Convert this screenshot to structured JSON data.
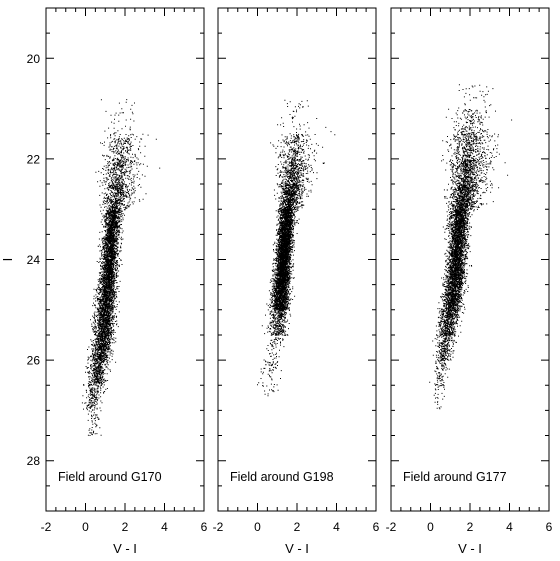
{
  "chart_data": [
    {
      "type": "scatter",
      "annotation": "Field around G170",
      "xlabel": "V - I",
      "ylabel": "I",
      "xlim": [
        -2,
        6
      ],
      "ylim": [
        29,
        19
      ],
      "y_inverted": true,
      "x_ticks": [
        -2,
        0,
        2,
        4,
        6
      ],
      "y_ticks": [
        20,
        22,
        24,
        26,
        28
      ],
      "grid": false,
      "distribution": [
        {
          "I": 20.8,
          "v_i_center": 1.9,
          "v_i_spread": 0.9,
          "relative_density": 0.05
        },
        {
          "I": 21.5,
          "v_i_center": 1.7,
          "v_i_spread": 0.8,
          "relative_density": 0.25
        },
        {
          "I": 22.0,
          "v_i_center": 1.6,
          "v_i_spread": 0.8,
          "relative_density": 0.45
        },
        {
          "I": 22.5,
          "v_i_center": 1.5,
          "v_i_spread": 0.7,
          "relative_density": 0.6
        },
        {
          "I": 23.0,
          "v_i_center": 1.4,
          "v_i_spread": 0.55,
          "relative_density": 0.85
        },
        {
          "I": 23.5,
          "v_i_center": 1.3,
          "v_i_spread": 0.45,
          "relative_density": 1.0
        },
        {
          "I": 24.0,
          "v_i_center": 1.2,
          "v_i_spread": 0.45,
          "relative_density": 1.0
        },
        {
          "I": 24.5,
          "v_i_center": 1.1,
          "v_i_spread": 0.45,
          "relative_density": 1.0
        },
        {
          "I": 25.0,
          "v_i_center": 1.0,
          "v_i_spread": 0.5,
          "relative_density": 0.95
        },
        {
          "I": 25.5,
          "v_i_center": 0.9,
          "v_i_spread": 0.55,
          "relative_density": 0.8
        },
        {
          "I": 26.0,
          "v_i_center": 0.7,
          "v_i_spread": 0.55,
          "relative_density": 0.5
        },
        {
          "I": 26.5,
          "v_i_center": 0.5,
          "v_i_spread": 0.5,
          "relative_density": 0.2
        },
        {
          "I": 27.0,
          "v_i_center": 0.3,
          "v_i_spread": 0.4,
          "relative_density": 0.06
        }
      ]
    },
    {
      "type": "scatter",
      "annotation": "Field around G198",
      "xlabel": "V - I",
      "ylabel": "",
      "xlim": [
        -2,
        6
      ],
      "ylim": [
        29,
        19
      ],
      "y_inverted": true,
      "x_ticks": [
        -2,
        0,
        2,
        4,
        6
      ],
      "y_ticks": [
        20,
        22,
        24,
        26,
        28
      ],
      "grid": false,
      "distribution": [
        {
          "I": 20.8,
          "v_i_center": 1.9,
          "v_i_spread": 0.8,
          "relative_density": 0.04
        },
        {
          "I": 21.5,
          "v_i_center": 1.8,
          "v_i_spread": 0.8,
          "relative_density": 0.2
        },
        {
          "I": 22.0,
          "v_i_center": 1.7,
          "v_i_spread": 0.75,
          "relative_density": 0.4
        },
        {
          "I": 22.5,
          "v_i_center": 1.6,
          "v_i_spread": 0.6,
          "relative_density": 0.6
        },
        {
          "I": 23.0,
          "v_i_center": 1.5,
          "v_i_spread": 0.45,
          "relative_density": 0.85
        },
        {
          "I": 23.5,
          "v_i_center": 1.4,
          "v_i_spread": 0.4,
          "relative_density": 1.0
        },
        {
          "I": 24.0,
          "v_i_center": 1.3,
          "v_i_spread": 0.4,
          "relative_density": 1.0
        },
        {
          "I": 24.5,
          "v_i_center": 1.2,
          "v_i_spread": 0.45,
          "relative_density": 0.9
        },
        {
          "I": 25.0,
          "v_i_center": 1.1,
          "v_i_spread": 0.5,
          "relative_density": 0.3
        },
        {
          "I": 25.5,
          "v_i_center": 1.0,
          "v_i_spread": 0.5,
          "relative_density": 0.08
        },
        {
          "I": 26.2,
          "v_i_center": 0.6,
          "v_i_spread": 0.5,
          "relative_density": 0.03
        }
      ]
    },
    {
      "type": "scatter",
      "annotation": "Field around G177",
      "xlabel": "V - I",
      "ylabel": "",
      "xlim": [
        -2,
        6
      ],
      "ylim": [
        29,
        19
      ],
      "y_inverted": true,
      "x_ticks": [
        -2,
        0,
        2,
        4,
        6
      ],
      "y_ticks": [
        20,
        22,
        24,
        26,
        28
      ],
      "grid": false,
      "distribution": [
        {
          "I": 20.5,
          "v_i_center": 2.0,
          "v_i_spread": 0.8,
          "relative_density": 0.04
        },
        {
          "I": 21.0,
          "v_i_center": 1.9,
          "v_i_spread": 0.9,
          "relative_density": 0.2
        },
        {
          "I": 21.5,
          "v_i_center": 1.8,
          "v_i_spread": 0.95,
          "relative_density": 0.45
        },
        {
          "I": 22.0,
          "v_i_center": 1.7,
          "v_i_spread": 0.9,
          "relative_density": 0.7
        },
        {
          "I": 22.5,
          "v_i_center": 1.6,
          "v_i_spread": 0.75,
          "relative_density": 0.9
        },
        {
          "I": 23.0,
          "v_i_center": 1.5,
          "v_i_spread": 0.6,
          "relative_density": 1.0
        },
        {
          "I": 23.5,
          "v_i_center": 1.4,
          "v_i_spread": 0.5,
          "relative_density": 1.0
        },
        {
          "I": 24.0,
          "v_i_center": 1.3,
          "v_i_spread": 0.5,
          "relative_density": 1.0
        },
        {
          "I": 24.5,
          "v_i_center": 1.2,
          "v_i_spread": 0.55,
          "relative_density": 0.9
        },
        {
          "I": 25.0,
          "v_i_center": 1.0,
          "v_i_spread": 0.55,
          "relative_density": 0.6
        },
        {
          "I": 25.5,
          "v_i_center": 0.8,
          "v_i_spread": 0.5,
          "relative_density": 0.3
        },
        {
          "I": 26.0,
          "v_i_center": 0.6,
          "v_i_spread": 0.45,
          "relative_density": 0.1
        },
        {
          "I": 26.5,
          "v_i_center": 0.4,
          "v_i_spread": 0.4,
          "relative_density": 0.03
        }
      ]
    }
  ]
}
